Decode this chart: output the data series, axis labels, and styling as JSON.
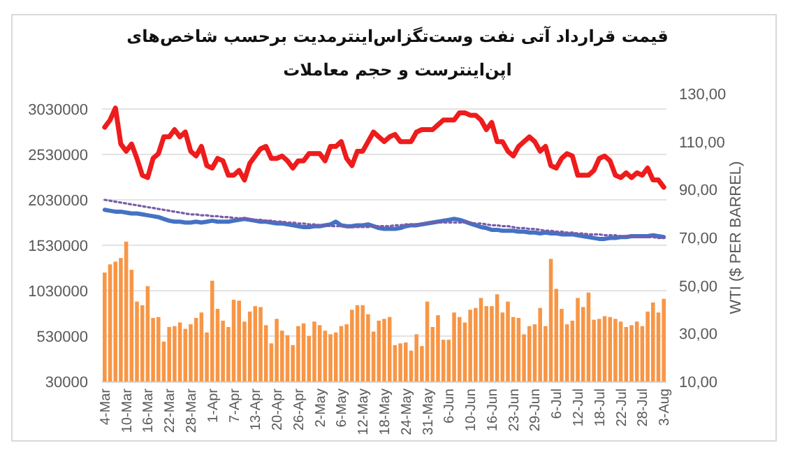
{
  "chart_data": {
    "type": "bar",
    "title": "قیمت قرارداد آتی نفت وست‌تگزاس‌اینترمدیت برحسب شاخص‌های اپن‌اینترست و حجم معاملات",
    "y2label": "WTI ($ PER BARREL)",
    "categories": [
      "4-Mar",
      null,
      null,
      null,
      "10-Mar",
      null,
      null,
      null,
      "16-Mar",
      null,
      null,
      null,
      "22-Mar",
      null,
      null,
      null,
      "28-Mar",
      null,
      null,
      null,
      "1-Apr",
      null,
      null,
      null,
      "7-Apr",
      null,
      null,
      null,
      "13-Apr",
      null,
      null,
      null,
      "20-Apr",
      null,
      null,
      null,
      "26-Apr",
      null,
      null,
      null,
      "2-May",
      null,
      null,
      null,
      "6-May",
      null,
      null,
      null,
      "12-May",
      null,
      null,
      null,
      "18-May",
      null,
      null,
      null,
      "24-May",
      null,
      null,
      null,
      "31-May",
      null,
      null,
      null,
      "6-Jun",
      null,
      null,
      null,
      "10-Jun",
      null,
      null,
      null,
      "16-Jun",
      null,
      null,
      null,
      "23-Jun",
      null,
      null,
      null,
      "29-Jun",
      null,
      null,
      null,
      "6-Jul",
      null,
      null,
      null,
      "12-Jul",
      null,
      null,
      null,
      "18-Jul",
      null,
      null,
      null,
      "22-Jul",
      null,
      null,
      null,
      "28-Jul",
      null,
      null,
      null,
      "3-Aug"
    ],
    "ylim": [
      30000,
      3030000
    ],
    "yticks": [
      30000,
      530000,
      1030000,
      1530000,
      2030000,
      2530000,
      3030000
    ],
    "y2lim": [
      10,
      130
    ],
    "y2ticks": [
      {
        "value": 10,
        "label": "10,00"
      },
      {
        "value": 30,
        "label": "30,00"
      },
      {
        "value": 50,
        "label": "50,00"
      },
      {
        "value": 70,
        "label": "70,00"
      },
      {
        "value": 90,
        "label": "90,00"
      },
      {
        "value": 110,
        "label": "110,00"
      },
      {
        "value": 130,
        "label": "130,00"
      }
    ],
    "grid": "y",
    "series": [
      {
        "color": "#f79646",
        "values": [
          1230000,
          1320000,
          1350000,
          1390000,
          1570000,
          1260000,
          910000,
          870000,
          1080000,
          730000,
          740000,
          470000,
          630000,
          640000,
          680000,
          610000,
          660000,
          730000,
          790000,
          570000,
          1140000,
          830000,
          700000,
          630000,
          930000,
          920000,
          690000,
          800000,
          860000,
          850000,
          650000,
          450000,
          720000,
          590000,
          540000,
          430000,
          640000,
          670000,
          530000,
          690000,
          650000,
          590000,
          550000,
          570000,
          640000,
          660000,
          820000,
          870000,
          870000,
          770000,
          580000,
          700000,
          720000,
          740000,
          430000,
          450000,
          460000,
          370000,
          550000,
          420000,
          910000,
          630000,
          760000,
          490000,
          490000,
          790000,
          740000,
          680000,
          820000,
          840000,
          950000,
          860000,
          860000,
          990000,
          790000,
          910000,
          740000,
          730000,
          550000,
          640000,
          660000,
          840000,
          640000,
          1380000,
          1050000,
          830000,
          660000,
          700000,
          950000,
          850000,
          1010000,
          710000,
          720000,
          750000,
          740000,
          720000,
          690000,
          630000,
          650000,
          690000,
          640000,
          800000,
          900000,
          790000,
          940000
        ]
      },
      {
        "type": "line",
        "color": "#4472c4",
        "values": [
          1920000,
          1910000,
          1900000,
          1900000,
          1890000,
          1880000,
          1880000,
          1870000,
          1860000,
          1850000,
          1840000,
          1820000,
          1800000,
          1790000,
          1790000,
          1780000,
          1780000,
          1790000,
          1780000,
          1790000,
          1800000,
          1790000,
          1790000,
          1790000,
          1800000,
          1810000,
          1820000,
          1810000,
          1800000,
          1790000,
          1790000,
          1780000,
          1770000,
          1770000,
          1760000,
          1750000,
          1740000,
          1730000,
          1730000,
          1740000,
          1740000,
          1750000,
          1760000,
          1790000,
          1750000,
          1740000,
          1740000,
          1750000,
          1750000,
          1760000,
          1740000,
          1720000,
          1710000,
          1710000,
          1710000,
          1720000,
          1740000,
          1750000,
          1750000,
          1760000,
          1770000,
          1780000,
          1790000,
          1800000,
          1810000,
          1820000,
          1810000,
          1790000,
          1770000,
          1750000,
          1730000,
          1720000,
          1700000,
          1700000,
          1690000,
          1690000,
          1690000,
          1680000,
          1680000,
          1670000,
          1670000,
          1660000,
          1670000,
          1660000,
          1660000,
          1650000,
          1650000,
          1650000,
          1640000,
          1630000,
          1620000,
          1610000,
          1600000,
          1600000,
          1610000,
          1610000,
          1620000,
          1620000,
          1630000,
          1630000,
          1630000,
          1630000,
          1640000,
          1630000,
          1620000
        ]
      },
      {
        "type": "line",
        "color": "#7a5ca8",
        "line_style": "dotted",
        "values": [
          2030000,
          2020000,
          2010000,
          2000000,
          1990000,
          1980000,
          1970000,
          1960000,
          1950000,
          1940000,
          1930000,
          1920000,
          1910000,
          1900000,
          1890000,
          1880000,
          1870000,
          1870000,
          1860000,
          1860000,
          1850000,
          1850000,
          1840000,
          1840000,
          1830000,
          1830000,
          1820000,
          1820000,
          1810000,
          1810000,
          1800000,
          1800000,
          1790000,
          1790000,
          1780000,
          1780000,
          1770000,
          1770000,
          1760000,
          1760000,
          1750000,
          1750000,
          1740000,
          1740000,
          1740000,
          1730000,
          1730000,
          1730000,
          1730000,
          1730000,
          1740000,
          1740000,
          1740000,
          1740000,
          1750000,
          1750000,
          1760000,
          1760000,
          1760000,
          1770000,
          1770000,
          1780000,
          1780000,
          1780000,
          1780000,
          1780000,
          1780000,
          1780000,
          1780000,
          1770000,
          1770000,
          1760000,
          1750000,
          1750000,
          1740000,
          1740000,
          1730000,
          1720000,
          1720000,
          1710000,
          1710000,
          1700000,
          1690000,
          1690000,
          1680000,
          1680000,
          1670000,
          1670000,
          1660000,
          1660000,
          1650000,
          1650000,
          1650000,
          1640000,
          1640000,
          1640000,
          1630000,
          1630000,
          1630000,
          1620000,
          1620000,
          1620000,
          1620000,
          1610000,
          1610000
        ]
      },
      {
        "type": "line",
        "axis": "y2",
        "color": "#ee1c1c",
        "values": [
          116,
          119,
          124,
          109,
          106,
          109,
          103,
          96,
          95,
          103,
          105,
          112,
          112,
          115,
          112,
          114,
          106,
          104,
          108,
          100,
          99,
          103,
          102,
          96,
          96,
          98,
          94,
          101,
          104,
          107,
          108,
          103,
          103,
          104,
          102,
          99,
          102,
          102,
          105,
          105,
          105,
          102,
          108,
          108,
          110,
          103,
          100,
          106,
          106,
          110,
          114,
          112,
          110,
          112,
          113,
          110,
          110,
          110,
          114,
          115,
          115,
          115,
          117,
          119,
          119,
          119,
          122,
          122,
          121,
          121,
          119,
          115,
          118,
          110,
          110,
          106,
          104,
          108,
          110,
          112,
          110,
          106,
          108,
          100,
          99,
          103,
          105,
          104,
          96,
          96,
          96,
          98,
          103,
          104,
          102,
          96,
          95,
          97,
          95,
          97,
          96,
          99,
          94,
          94,
          91
        ]
      }
    ]
  }
}
